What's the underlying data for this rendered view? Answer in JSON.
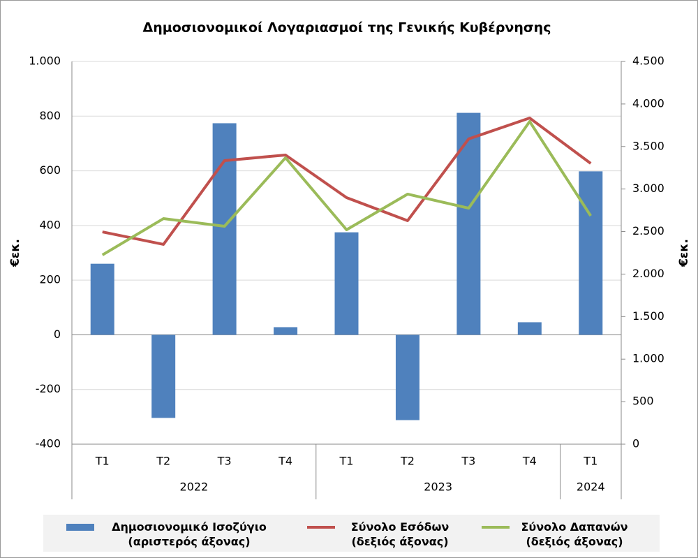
{
  "chart_data": {
    "type": "bar-line",
    "title": "Δημοσιονομικοί Λογαριασμοί της Γενικής Κυβέρνησης",
    "y_label": "€εκ.",
    "y2_label": "€εκ.",
    "groups": [
      {
        "label": "2022",
        "categories": [
          "T1",
          "T2",
          "T3",
          "T4"
        ]
      },
      {
        "label": "2023",
        "categories": [
          "T1",
          "T2",
          "T3",
          "T4"
        ]
      },
      {
        "label": "2024",
        "categories": [
          "T1"
        ]
      }
    ],
    "series": [
      {
        "name": "Δημοσιονομικό Ισοζύγιο\n(αριστερός άξονας)",
        "type": "bar",
        "axis": "y",
        "color": "#4f81bd",
        "values": [
          260,
          -304,
          774,
          28,
          375,
          -312,
          812,
          46,
          598
        ]
      },
      {
        "name": "Σύνολο Εσόδων\n(δεξιός άξονας)",
        "type": "line",
        "axis": "y2",
        "color": "#c0504d",
        "values": [
          2496,
          2349,
          3334,
          3400,
          2899,
          2628,
          3589,
          3835,
          3301
        ]
      },
      {
        "name": "Σύνολο Δαπανών\n(δεξιός άξονας)",
        "type": "line",
        "axis": "y2",
        "color": "#9bbb59",
        "values": [
          2225,
          2652,
          2562,
          3367,
          2521,
          2940,
          2775,
          3794,
          2685
        ]
      }
    ],
    "ylim": [
      -400,
      1000
    ],
    "yticks": [
      -400,
      -200,
      0,
      200,
      400,
      600,
      800,
      {
        "value": 1000,
        "label": "1.000"
      }
    ],
    "y2lim": [
      0,
      4500
    ],
    "y2ticks": [
      0,
      500,
      {
        "value": 1000,
        "label": "1.000"
      },
      {
        "value": 1500,
        "label": "1.500"
      },
      {
        "value": 2000,
        "label": "2.000"
      },
      {
        "value": 2500,
        "label": "2.500"
      },
      {
        "value": 3000,
        "label": "3.000"
      },
      {
        "value": 3500,
        "label": "3.500"
      },
      {
        "value": 4000,
        "label": "4.000"
      },
      {
        "value": 4500,
        "label": "4.500"
      }
    ],
    "grid": true,
    "legend": "bottom"
  }
}
